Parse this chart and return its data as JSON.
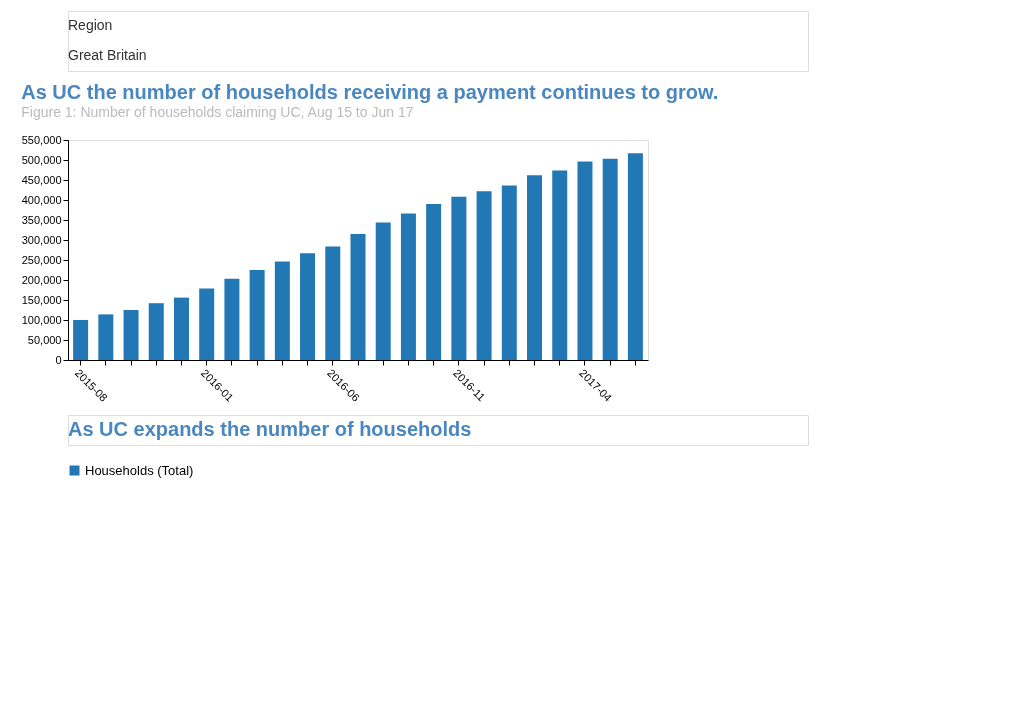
{
  "chart_data": {
    "type": "bar",
    "title": "As UC the number of households receiving a payment continues to grow.",
    "subtitle": "Figure 1: Number of households claiming UC, Aug 15 to Jun 17",
    "annotations": [
      "Region",
      "Great Britain",
      "As UC expands the number of households"
    ],
    "categories": [
      "2015-08",
      null,
      null,
      null,
      null,
      "2016-01",
      null,
      null,
      null,
      null,
      "2016-06",
      null,
      null,
      null,
      null,
      "2016-11",
      null,
      null,
      null,
      null,
      "2017-04",
      null,
      null
    ],
    "series": [
      {
        "name": "Households (Total)",
        "color": "#2178b4",
        "values": [
          100000,
          114000,
          125000,
          142000,
          156000,
          179000,
          203000,
          225000,
          246000,
          267000,
          284000,
          315000,
          344000,
          366000,
          390000,
          408000,
          422000,
          436000,
          462000,
          474000,
          496000,
          503000,
          517000
        ]
      }
    ],
    "ylim": [
      0,
      550000
    ],
    "yticks": [
      0,
      {
        "value": 50000,
        "label": "50,000"
      },
      {
        "value": 100000,
        "label": "100,000"
      },
      {
        "value": 150000,
        "label": "150,000"
      },
      {
        "value": 200000,
        "label": "200,000"
      },
      {
        "value": 250000,
        "label": "250,000"
      },
      {
        "value": 300000,
        "label": "300,000"
      },
      {
        "value": 350000,
        "label": "350,000"
      },
      {
        "value": 400000,
        "label": "400,000"
      },
      {
        "value": 450000,
        "label": "450,000"
      },
      {
        "value": 500000,
        "label": "500,000"
      },
      {
        "value": 550000,
        "label": "550,000"
      }
    ],
    "grid": false,
    "legend": "bottom"
  }
}
